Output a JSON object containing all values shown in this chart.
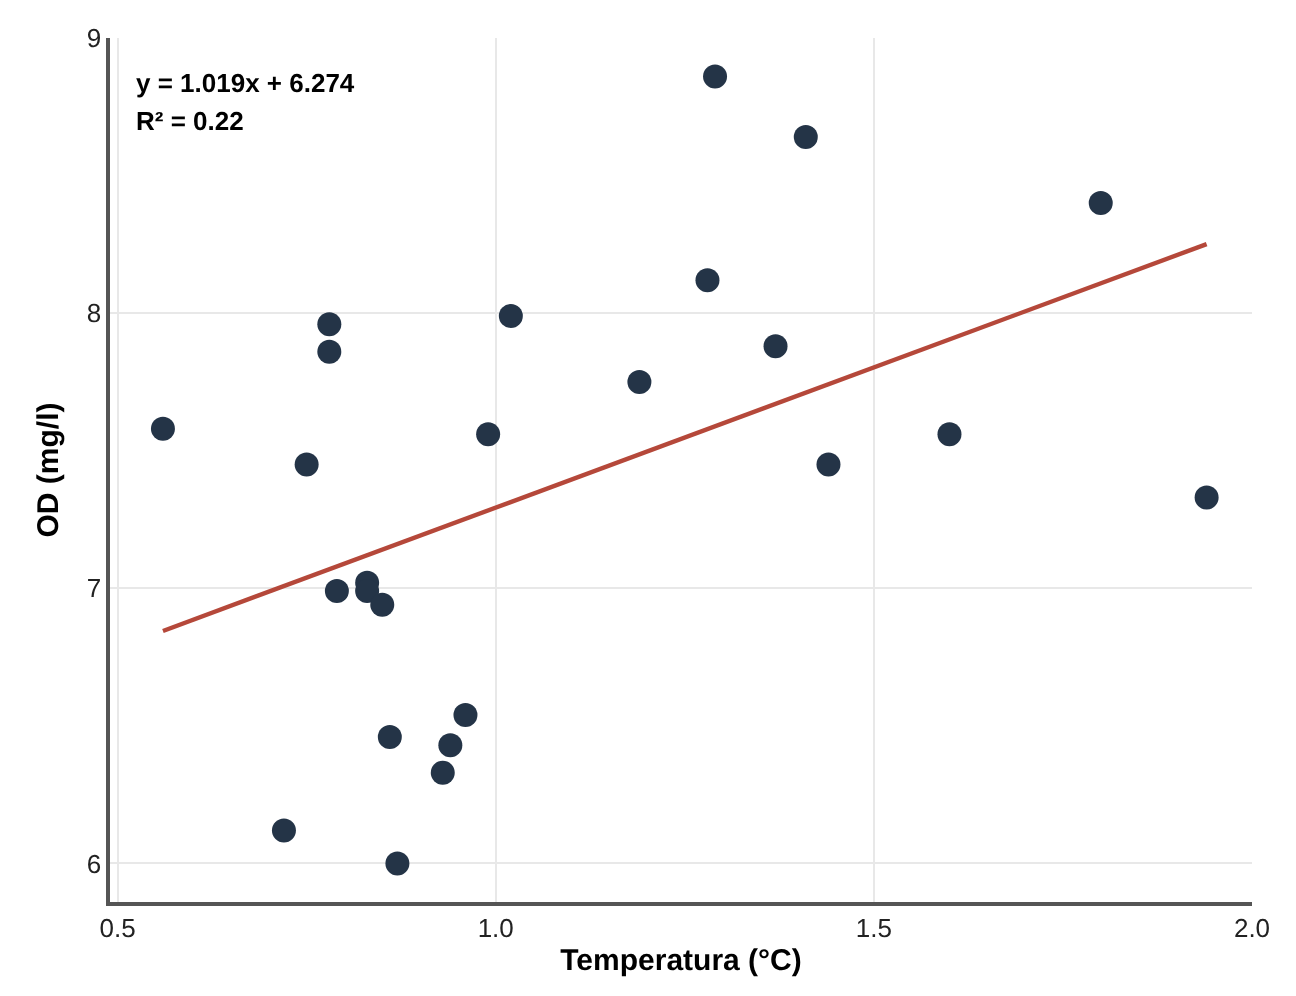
{
  "chart_data": {
    "type": "scatter",
    "xlabel": "Temperatura (°C)",
    "ylabel": "OD (mg/l)",
    "xlim": [
      0.49,
      2.0
    ],
    "ylim": [
      5.86,
      9.0
    ],
    "xticks": [
      {
        "value": 0.5,
        "label": "0.5"
      },
      {
        "value": 1.0,
        "label": "1.0"
      },
      {
        "value": 1.5,
        "label": "1.5"
      },
      {
        "value": 2.0,
        "label": "2.0"
      }
    ],
    "yticks": [
      6,
      7,
      8,
      9
    ],
    "grid": true,
    "marker": "circle",
    "annotations": [
      "y = 1.019x + 6.274",
      "R² = 0.22"
    ],
    "series": [
      {
        "color": "#243447",
        "x": [
          0.56,
          0.78,
          0.78,
          0.75,
          1.02,
          0.99,
          1.19,
          1.29,
          1.41,
          1.28,
          1.37,
          1.8,
          1.6,
          1.44,
          1.94,
          0.79,
          0.83,
          0.83,
          0.85,
          0.96,
          0.86,
          0.94,
          0.93,
          0.72,
          0.87
        ],
        "values": [
          7.58,
          7.96,
          7.86,
          7.45,
          7.99,
          7.56,
          7.75,
          8.86,
          8.64,
          8.12,
          7.88,
          8.4,
          7.56,
          7.45,
          7.33,
          6.99,
          7.02,
          6.99,
          6.94,
          6.54,
          6.46,
          6.43,
          6.33,
          6.12,
          6.0
        ]
      },
      {
        "type": "line",
        "color": "#b5483a",
        "line_style": "solid",
        "marker": "none",
        "x": [
          0.56,
          1.94
        ],
        "values": [
          6.845,
          8.251
        ]
      }
    ]
  }
}
